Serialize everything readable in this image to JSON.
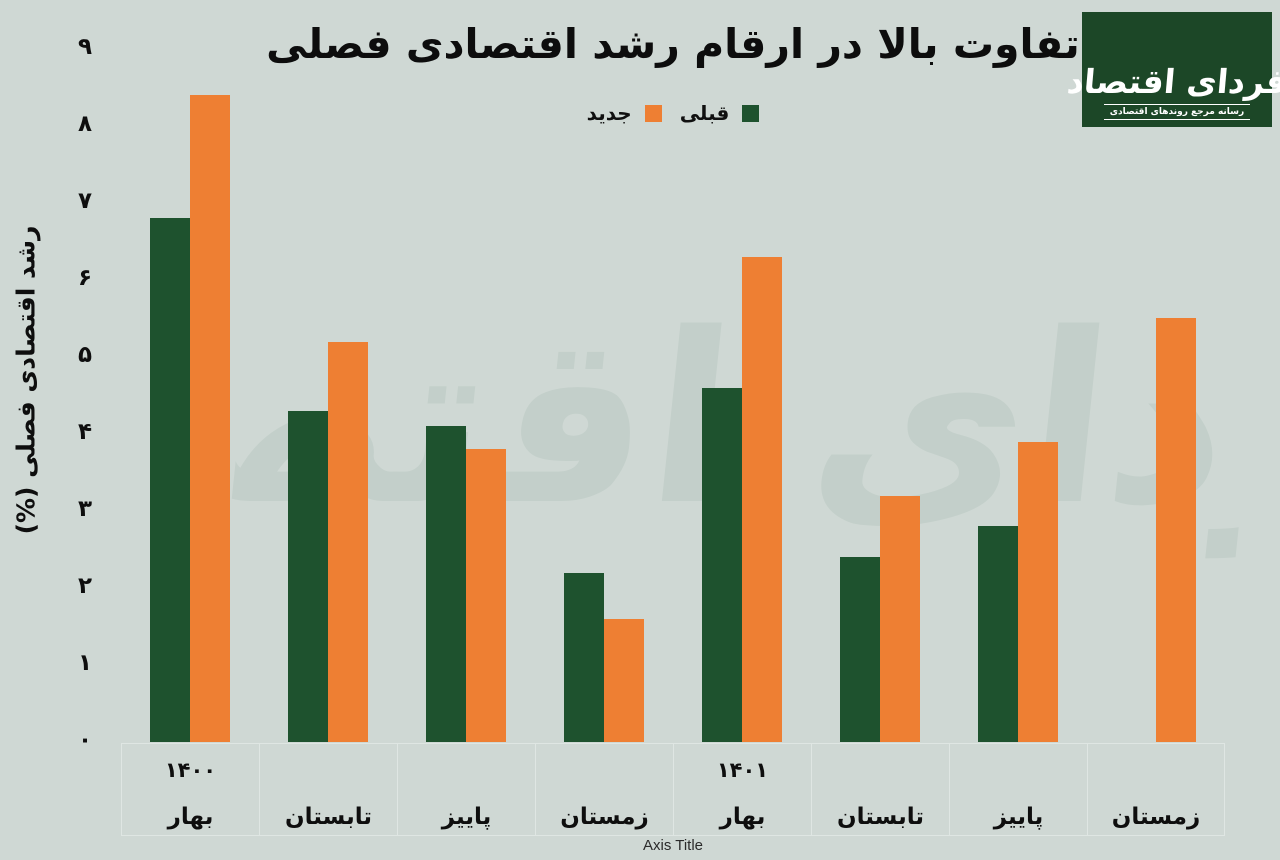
{
  "header": {
    "title": "تفاوت بالا در ارقام رشد اقتصادی فصلی"
  },
  "legend": {
    "items": [
      {
        "label": "قبلی",
        "color": "#1e522e"
      },
      {
        "label": "جدید",
        "color": "#ee7f33"
      }
    ]
  },
  "logo": {
    "name": "فردای اقتصاد",
    "tagline": "رسانه مرجع روندهای اقتصادی",
    "background": "#1c4727"
  },
  "watermark": {
    "text": "فردای اقتصاد"
  },
  "colors": {
    "background": "#cfd8d4",
    "previous_series": "#1e522e",
    "new_series": "#ee7f33",
    "logo_green": "#1c4727"
  },
  "chart_data": {
    "type": "bar",
    "title": "تفاوت بالا در ارقام رشد اقتصادی فصلی",
    "ylabel": "رشد اقتصادی فصلی (%)",
    "xlabel": "Axis Title",
    "ylim": [
      0,
      9
    ],
    "grid": false,
    "legend_position": "top-center",
    "y_ticks": [
      "۰",
      "۱",
      "۲",
      "۳",
      "۴",
      "۵",
      "۶",
      "۷",
      "۸",
      "۹"
    ],
    "groups": [
      {
        "year": "۱۴۰۰",
        "season": "بهار"
      },
      {
        "year": "",
        "season": "تابستان"
      },
      {
        "year": "",
        "season": "پاییز"
      },
      {
        "year": "",
        "season": "زمستان"
      },
      {
        "year": "۱۴۰۱",
        "season": "بهار"
      },
      {
        "year": "",
        "season": "تابستان"
      },
      {
        "year": "",
        "season": "پاییز"
      },
      {
        "year": "",
        "season": "زمستان"
      }
    ],
    "series": [
      {
        "name": "قبلی",
        "color": "#1e522e",
        "values": [
          6.8,
          4.3,
          4.1,
          2.2,
          4.6,
          2.4,
          2.8,
          null
        ]
      },
      {
        "name": "جدید",
        "color": "#ee7f33",
        "values": [
          8.4,
          5.2,
          3.8,
          1.6,
          6.3,
          3.2,
          3.9,
          5.5
        ]
      }
    ]
  }
}
